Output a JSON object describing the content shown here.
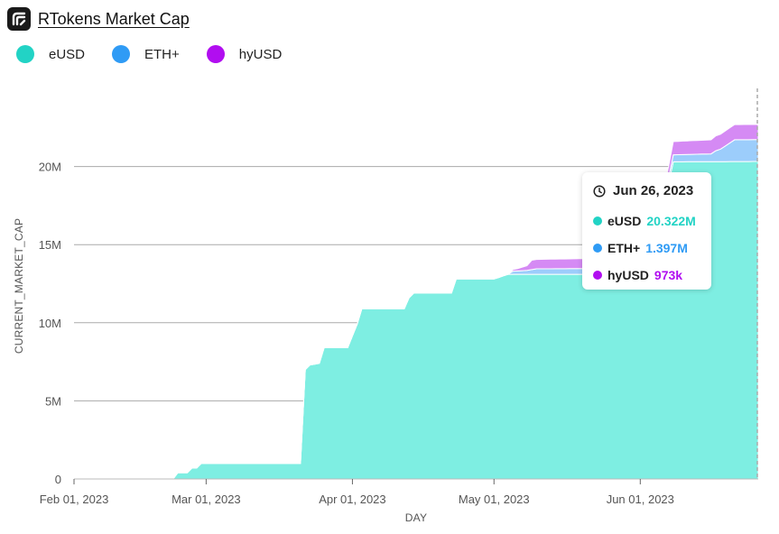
{
  "header": {
    "title": "RTokens Market Cap",
    "logo_icon": "rtoken-logo-icon"
  },
  "colors": {
    "eUSD": "#7eeee2",
    "ETH+": "#9ccdfb",
    "hyUSD": "#d58af4",
    "eUSD_dot": "#22d3c5",
    "ETH+_dot": "#2f9bf5",
    "hyUSD_dot": "#b10ef0",
    "grid": "#aaaaaa",
    "cursor": "#aaaaaa"
  },
  "legend": [
    {
      "label": "eUSD",
      "color": "#22d3c5"
    },
    {
      "label": "ETH+",
      "color": "#2f9bf5"
    },
    {
      "label": "hyUSD",
      "color": "#b10ef0"
    }
  ],
  "tooltip": {
    "date": "Jun 26, 2023",
    "rows": [
      {
        "name": "eUSD",
        "value": "20.322M",
        "color": "#22d3c5"
      },
      {
        "name": "ETH+",
        "value": "1.397M",
        "color": "#2f9bf5"
      },
      {
        "name": "hyUSD",
        "value": "973k",
        "color": "#b10ef0"
      }
    ]
  },
  "chart_data": {
    "type": "area",
    "stacked": true,
    "title": "RTokens Market Cap",
    "xlabel": "DAY",
    "ylabel": "CURRENT_MARKET_CAP",
    "ylim": [
      0,
      25000000
    ],
    "xlim": [
      "2023-02-01",
      "2023-06-26"
    ],
    "yticks": [
      0,
      5000000,
      10000000,
      15000000,
      20000000
    ],
    "ytick_labels": [
      "0",
      "5M",
      "10M",
      "15M",
      "20M"
    ],
    "xticks": [
      "2023-02-01",
      "2023-03-01",
      "2023-04-01",
      "2023-05-01",
      "2023-06-01"
    ],
    "xtick_labels": [
      "Feb 01, 2023",
      "Mar 01, 2023",
      "Apr 01, 2023",
      "May 01, 2023",
      "Jun 01, 2023"
    ],
    "grid": true,
    "legend_position": "top-left",
    "series": [
      {
        "name": "eUSD",
        "points": [
          [
            "2023-02-22",
            0
          ],
          [
            "2023-02-23",
            400000
          ],
          [
            "2023-02-25",
            400000
          ],
          [
            "2023-02-26",
            700000
          ],
          [
            "2023-02-27",
            700000
          ],
          [
            "2023-02-28",
            1000000
          ],
          [
            "2023-03-21",
            1000000
          ],
          [
            "2023-03-22",
            7000000
          ],
          [
            "2023-03-23",
            7300000
          ],
          [
            "2023-03-25",
            7400000
          ],
          [
            "2023-03-26",
            8400000
          ],
          [
            "2023-03-31",
            8400000
          ],
          [
            "2023-04-02",
            9900000
          ],
          [
            "2023-04-03",
            10900000
          ],
          [
            "2023-04-12",
            10900000
          ],
          [
            "2023-04-13",
            11600000
          ],
          [
            "2023-04-14",
            11900000
          ],
          [
            "2023-04-22",
            11900000
          ],
          [
            "2023-04-23",
            12800000
          ],
          [
            "2023-05-01",
            12800000
          ],
          [
            "2023-05-04",
            13100000
          ],
          [
            "2023-06-01",
            13100000
          ],
          [
            "2023-06-02",
            15000000
          ],
          [
            "2023-06-06",
            17500000
          ],
          [
            "2023-06-08",
            20300000
          ],
          [
            "2023-06-26",
            20322000
          ]
        ]
      },
      {
        "name": "ETH+",
        "points": [
          [
            "2023-05-04",
            0
          ],
          [
            "2023-05-05",
            200000
          ],
          [
            "2023-05-08",
            250000
          ],
          [
            "2023-05-09",
            300000
          ],
          [
            "2023-05-10",
            350000
          ],
          [
            "2023-06-07",
            400000
          ],
          [
            "2023-06-08",
            450000
          ],
          [
            "2023-06-16",
            500000
          ],
          [
            "2023-06-17",
            700000
          ],
          [
            "2023-06-18",
            800000
          ],
          [
            "2023-06-19",
            1000000
          ],
          [
            "2023-06-21",
            1397000
          ],
          [
            "2023-06-26",
            1397000
          ]
        ]
      },
      {
        "name": "hyUSD",
        "points": [
          [
            "2023-05-04",
            0
          ],
          [
            "2023-05-05",
            100000
          ],
          [
            "2023-05-06",
            150000
          ],
          [
            "2023-05-08",
            300000
          ],
          [
            "2023-05-09",
            600000
          ],
          [
            "2023-06-07",
            700000
          ],
          [
            "2023-06-08",
            850000
          ],
          [
            "2023-06-16",
            900000
          ],
          [
            "2023-06-17",
            950000
          ],
          [
            "2023-06-21",
            973000
          ],
          [
            "2023-06-26",
            973000
          ]
        ]
      }
    ]
  }
}
